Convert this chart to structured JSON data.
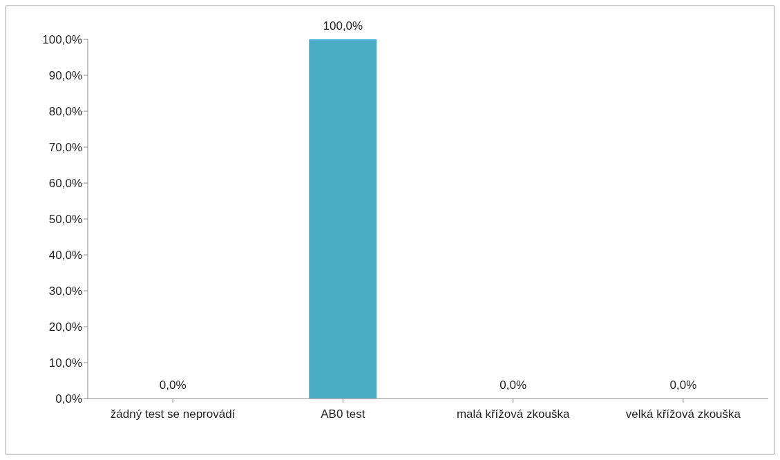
{
  "chart_data": {
    "type": "bar",
    "categories": [
      "žádný test se neprovádí",
      "AB0 test",
      "malá křížová zkouška",
      "velká křížová zkouška"
    ],
    "values": [
      0,
      100,
      0,
      0
    ],
    "color": "#4bacc6",
    "value_labels": [
      "0,0%",
      "100,0%",
      "0,0%",
      "0,0%"
    ],
    "ylim": [
      0,
      100
    ],
    "yticks": [
      {
        "value": 0,
        "label": "0,0%"
      },
      {
        "value": 10,
        "label": "10,0%"
      },
      {
        "value": 20,
        "label": "20,0%"
      },
      {
        "value": 30,
        "label": "30,0%"
      },
      {
        "value": 40,
        "label": "40,0%"
      },
      {
        "value": 50,
        "label": "50,0%"
      },
      {
        "value": 60,
        "label": "60,0%"
      },
      {
        "value": 70,
        "label": "70,0%"
      },
      {
        "value": 80,
        "label": "80,0%"
      },
      {
        "value": 90,
        "label": "90,0%"
      },
      {
        "value": 100,
        "label": "100,0%"
      }
    ],
    "grid": false,
    "legend": false
  }
}
